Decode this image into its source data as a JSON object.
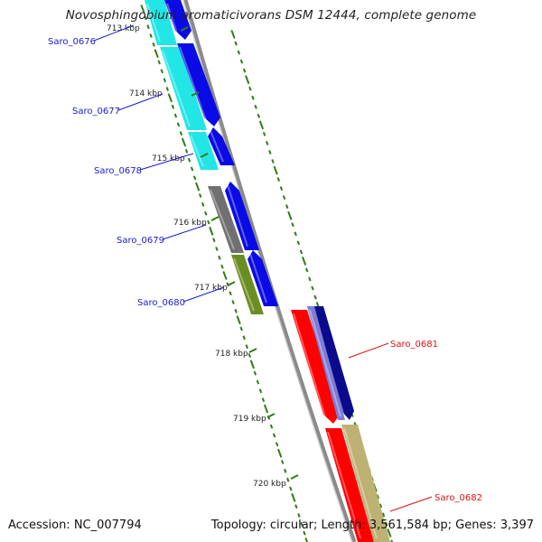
{
  "title": "Novosphingobium aromaticivorans DSM 12444, complete genome",
  "footer": {
    "accession": "Accession: NC_007794",
    "summary": "Topology: circular; Length: 3,561,584 bp; Genes: 3,397"
  },
  "ticks": [
    "713 kbp",
    "714 kbp",
    "715 kbp",
    "716 kbp",
    "717 kbp",
    "718 kbp",
    "719 kbp",
    "720 kbp"
  ],
  "genes": [
    "Saro_0676",
    "Saro_0677",
    "Saro_0678",
    "Saro_0679",
    "Saro_0680",
    "Saro_0681",
    "Saro_0682"
  ],
  "colors": {
    "backbone": "#8a8a8a",
    "tick": "#2e7d14",
    "forward_label": "#1a1acc",
    "reverse_label": "#dd1111",
    "cds_forward": "#0a0ae6",
    "cds_reverse": "#ff0000",
    "cyan": "#22e6e6",
    "gray": "#707070",
    "olive": "#6b8e23",
    "navy": "#0a0a8c",
    "tan": "#bdb273"
  }
}
